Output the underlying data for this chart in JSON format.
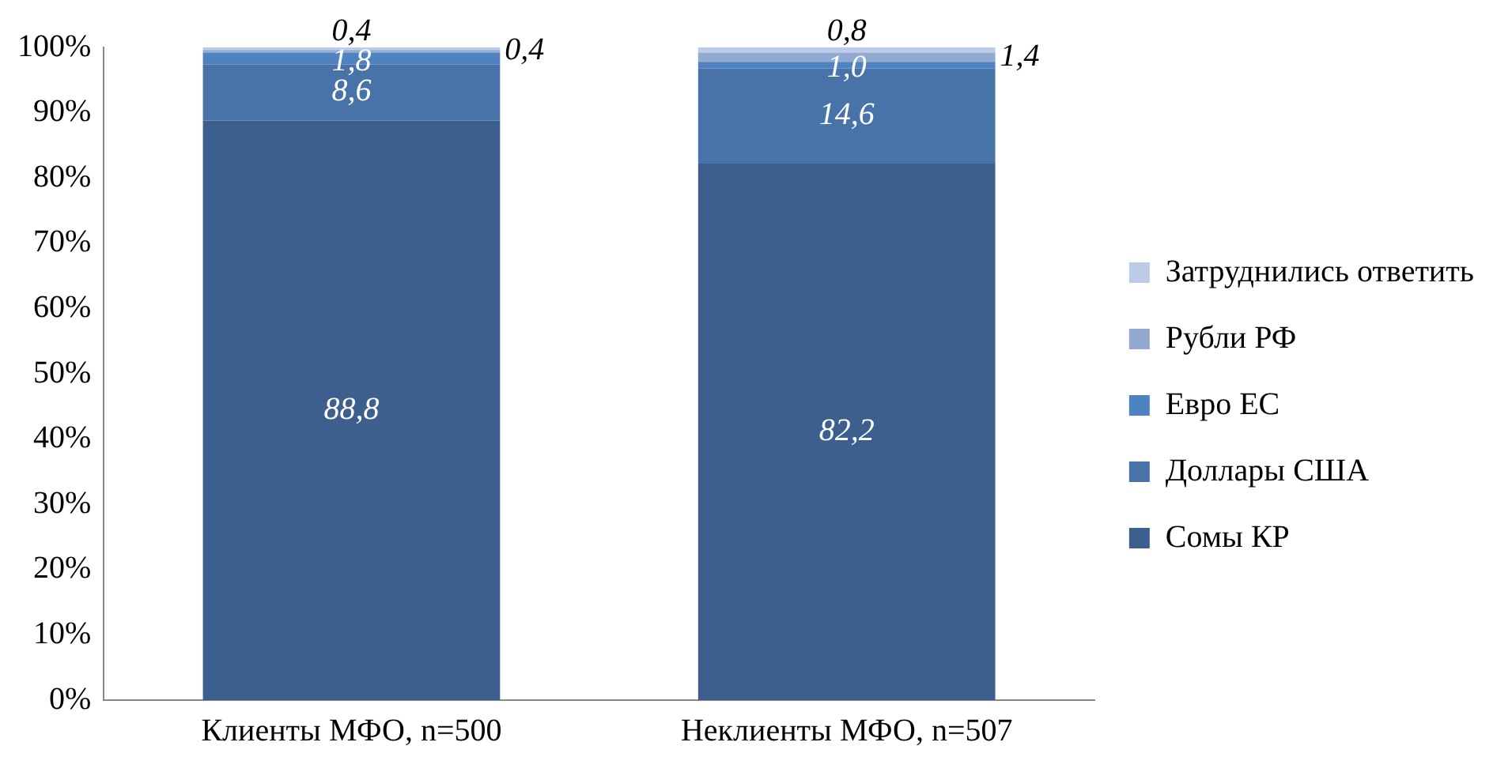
{
  "chart_data": {
    "type": "bar",
    "stacked": true,
    "categories": [
      "Клиенты МФО, n=500",
      "Неклиенты МФО, n=507"
    ],
    "series": [
      {
        "name": "Сомы КР",
        "color": "#3c5f8e",
        "values": [
          88.8,
          82.2
        ],
        "value_labels": [
          "88,8",
          "82,2"
        ]
      },
      {
        "name": "Доллары США",
        "color": "#4773a9",
        "values": [
          8.6,
          14.6
        ],
        "value_labels": [
          "8,6",
          "14,6"
        ]
      },
      {
        "name": "Евро ЕС",
        "color": "#4f82c0",
        "values": [
          1.8,
          1.0
        ],
        "value_labels": [
          "1,8",
          "1,0"
        ]
      },
      {
        "name": "Рубли РФ",
        "color": "#93a9d0",
        "values": [
          0.4,
          1.4
        ],
        "value_labels": [
          "0,4",
          "1,4"
        ]
      },
      {
        "name": "Затруднились ответить",
        "color": "#bccbe6",
        "values": [
          0.4,
          0.8
        ],
        "value_labels": [
          "0,4",
          "0,8"
        ]
      }
    ],
    "ylim": [
      0,
      100
    ],
    "yticks": [
      {
        "value": 0,
        "label": "0%"
      },
      {
        "value": 10,
        "label": "10%"
      },
      {
        "value": 20,
        "label": "20%"
      },
      {
        "value": 30,
        "label": "30%"
      },
      {
        "value": 40,
        "label": "40%"
      },
      {
        "value": 50,
        "label": "50%"
      },
      {
        "value": 60,
        "label": "60%"
      },
      {
        "value": 70,
        "label": "70%"
      },
      {
        "value": 80,
        "label": "80%"
      },
      {
        "value": 90,
        "label": "90%"
      },
      {
        "value": 100,
        "label": "100%"
      }
    ],
    "grid": false,
    "legend": "right"
  }
}
